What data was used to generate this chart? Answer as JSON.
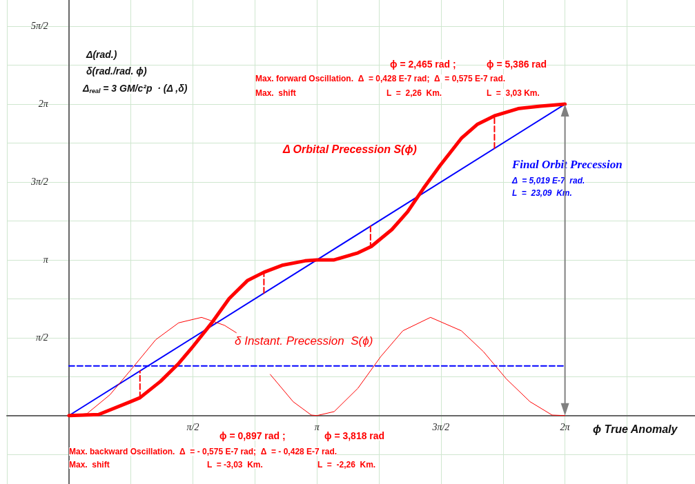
{
  "chart_data": {
    "type": "line",
    "xlabel": "ϕ True Anomaly",
    "xlim": [
      -0.7854,
      7.93
    ],
    "ylim": [
      -1.38,
      8.38
    ],
    "xticks": [
      {
        "value": -0.7854,
        "label": null
      },
      {
        "value": 0.7854,
        "label": null
      },
      {
        "value": 1.5708,
        "label": "π/2"
      },
      {
        "value": 2.3562,
        "label": null
      },
      {
        "value": 3.1416,
        "label": "π"
      },
      {
        "value": 3.927,
        "label": null
      },
      {
        "value": 4.7124,
        "label": "3π/2"
      },
      {
        "value": 5.4978,
        "label": null
      },
      {
        "value": 6.2832,
        "label": "2π"
      },
      {
        "value": 7.0686,
        "label": null
      }
    ],
    "yticks": [
      {
        "value": -0.7854,
        "label": null
      },
      {
        "value": 0.7854,
        "label": null
      },
      {
        "value": 1.5708,
        "label": "π/2"
      },
      {
        "value": 2.3562,
        "label": null
      },
      {
        "value": 3.1416,
        "label": "π"
      },
      {
        "value": 3.927,
        "label": null
      },
      {
        "value": 4.7124,
        "label": "3π/2"
      },
      {
        "value": 5.4978,
        "label": null
      },
      {
        "value": 6.2832,
        "label": "2π"
      },
      {
        "value": 7.0686,
        "label": null
      },
      {
        "value": 7.854,
        "label": "5π/2"
      }
    ],
    "grid": true,
    "marker": "none",
    "series": [
      {
        "color": "#0000ff",
        "x": [
          0,
          6.2832
        ],
        "values": [
          0,
          6.28
        ]
      },
      {
        "name": "Δ Orbital Precession S(ϕ)",
        "color": "#ff0000",
        "x": [
          0,
          0.375,
          0.78,
          0.9,
          1.16,
          1.39,
          1.57,
          1.8,
          2.03,
          2.26,
          2.47,
          2.7,
          2.99,
          3.1416,
          3.36,
          3.66,
          3.83,
          4.09,
          4.29,
          4.49,
          4.7,
          4.97,
          5.17,
          5.4,
          5.69,
          5.97,
          6.2832
        ],
        "values": [
          0,
          0.02,
          0.28,
          0.36,
          0.69,
          1.05,
          1.39,
          1.85,
          2.36,
          2.72,
          2.89,
          3.03,
          3.12,
          3.14,
          3.14,
          3.28,
          3.41,
          3.75,
          4.11,
          4.58,
          5.04,
          5.59,
          5.87,
          6.05,
          6.19,
          6.24,
          6.28
        ]
      },
      {
        "name": "δ Instant. Precession  S(ϕ)",
        "color": "#ff0000",
        "x": [
          0,
          0.23,
          0.52,
          0.81,
          1.1,
          1.39,
          1.68,
          1.97,
          2.12,
          2.35,
          2.55,
          2.84,
          3.07,
          3.1416,
          3.36,
          3.66,
          3.95,
          4.23,
          4.58,
          4.97,
          5.25,
          5.54,
          5.84,
          6.12,
          6.2832
        ],
        "values": [
          0,
          0.04,
          0.42,
          0.97,
          1.53,
          1.87,
          1.98,
          1.82,
          1.67,
          null,
          0.83,
          0.28,
          0.01,
          0,
          0.08,
          0.55,
          1.19,
          1.71,
          1.98,
          1.71,
          1.29,
          0.74,
          0.28,
          0.01,
          0
        ]
      },
      {
        "color": "#0000ff",
        "line_style": "dashed",
        "x": [
          0,
          6.2832
        ],
        "values": [
          1,
          1
        ]
      },
      {
        "color": "#ff0000",
        "line_style": "dashed",
        "x": [
          0.9,
          0.9
        ],
        "values": [
          0.36,
          0.9
        ]
      },
      {
        "color": "#ff0000",
        "line_style": "dashed",
        "x": [
          2.47,
          2.47
        ],
        "values": [
          2.47,
          2.89
        ]
      },
      {
        "color": "#ff0000",
        "line_style": "dashed",
        "x": [
          3.82,
          3.82
        ],
        "values": [
          3.82,
          3.41
        ]
      },
      {
        "color": "#ff0000",
        "line_style": "dashed",
        "x": [
          5.39,
          5.39
        ],
        "values": [
          5.39,
          6.05
        ]
      }
    ],
    "annotations": [
      "Δ(rad.)",
      "δ(rad./rad. ϕ)",
      "Δ$_{real}$ = 3 GM/c²p  · (Δ ,δ)",
      "ϕ = 2,465 rad ;",
      "ϕ = 5,386 rad",
      "Max. forward Oscillation.  Δ  = 0,428 E-7 rad;  Δ  = 0,575 E-7 rad.",
      "Max.  shift",
      "L  =  2,26  Km.",
      "L  =  3,03 Km.",
      "Final Orbit Precession",
      "Δ  = 5,019 E-7  rad.",
      "L  =  23,09  Km.",
      "ϕ = 0,897 rad ;",
      "ϕ = 3,818 rad",
      "Max. backward Oscillation.  Δ  = - 0,575 E-7 rad;  Δ  = - 0,428 E-7 rad.",
      "Max.  shift",
      "L  = -3,03  Km.",
      "L  =  -2,26  Km."
    ]
  }
}
